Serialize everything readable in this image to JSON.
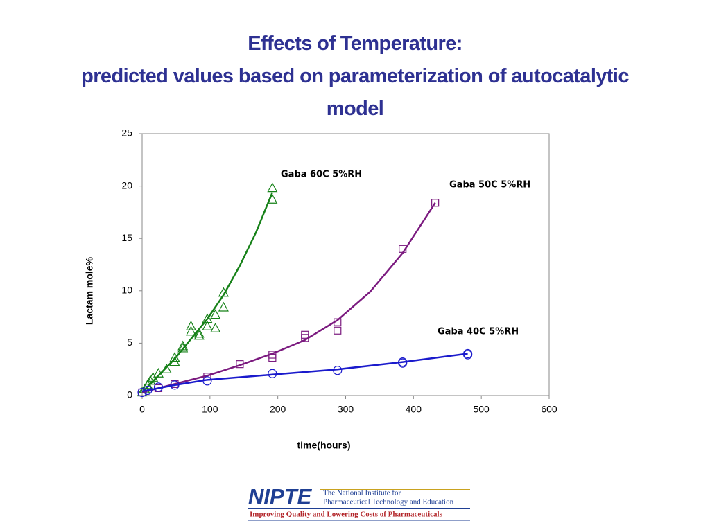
{
  "chart_data": {
    "type": "scatter",
    "title": "Effects of Temperature:",
    "subtitle": "predicted values based on parameterization of autocatalytic model",
    "x_label": "time(hours)",
    "y_label": "Lactam mole%",
    "xlim": [
      0,
      600
    ],
    "xticks": [
      0,
      100,
      200,
      300,
      400,
      500,
      600
    ],
    "ylim": [
      0,
      25
    ],
    "yticks": [
      0,
      5,
      10,
      15,
      20,
      25
    ],
    "grid": false,
    "series": [
      {
        "name": "Gaba 60C 5%RH",
        "color": "#168118",
        "marker": "triangle",
        "x": [
          0,
          4,
          8,
          12,
          16,
          24,
          36,
          48,
          48,
          60,
          60,
          72,
          72,
          84,
          84,
          96,
          96,
          108,
          108,
          120,
          120,
          192,
          192
        ],
        "values": [
          0.3,
          0.6,
          1.0,
          1.4,
          1.7,
          2.1,
          2.5,
          3.2,
          3.6,
          4.5,
          4.7,
          6.1,
          6.6,
          5.7,
          5.9,
          6.6,
          7.3,
          6.4,
          7.7,
          8.4,
          9.8,
          18.7,
          19.8
        ],
        "fit_x": [
          0,
          24,
          48,
          72,
          96,
          120,
          144,
          168,
          192
        ],
        "fit_values": [
          0.3,
          1.9,
          3.5,
          5.4,
          7.3,
          9.6,
          12.4,
          15.6,
          19.4
        ]
      },
      {
        "name": "Gaba 50C 5%RH",
        "color": "#7b1a7f",
        "marker": "square",
        "x": [
          0,
          24,
          48,
          96,
          144,
          192,
          192,
          240,
          240,
          288,
          288,
          384,
          432
        ],
        "values": [
          0.3,
          0.7,
          1.1,
          1.8,
          3.0,
          3.6,
          3.9,
          5.5,
          5.8,
          6.2,
          7.0,
          14.0,
          18.4
        ],
        "fit_x": [
          0,
          48,
          96,
          144,
          192,
          240,
          288,
          336,
          384,
          432
        ],
        "fit_values": [
          0.3,
          1.1,
          1.9,
          2.9,
          4.0,
          5.3,
          7.2,
          9.9,
          13.6,
          18.4
        ]
      },
      {
        "name": "Gaba 40C 5%RH",
        "color": "#1a1acc",
        "marker": "circle",
        "x": [
          0,
          8,
          24,
          48,
          96,
          192,
          288,
          384,
          384,
          480,
          480
        ],
        "values": [
          0.3,
          0.5,
          0.8,
          1.0,
          1.4,
          2.1,
          2.4,
          3.1,
          3.2,
          3.9,
          4.0
        ],
        "fit_x": [
          0,
          48,
          96,
          192,
          288,
          384,
          480
        ],
        "fit_values": [
          0.4,
          1.0,
          1.5,
          2.0,
          2.5,
          3.2,
          4.0
        ]
      }
    ]
  },
  "logo": {
    "name": "NIPTE",
    "line1": "The National Institute for",
    "line2": "Pharmaceutical Technology and Education",
    "tagline": "Improving Quality and Lowering Costs of Pharmaceuticals"
  }
}
